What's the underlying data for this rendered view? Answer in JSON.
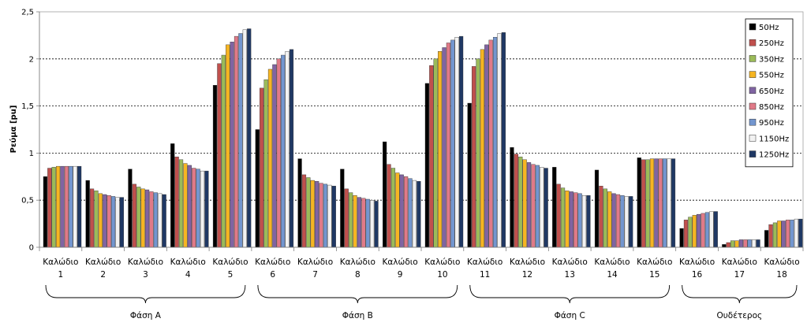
{
  "chart_data": {
    "type": "bar",
    "ylabel": "Ρεύμα [pu]",
    "xlabel": "",
    "ylim": [
      0,
      2.5
    ],
    "yticks": [
      "0",
      "0,5",
      "1",
      "1,5",
      "2",
      "2,5"
    ],
    "grid": true,
    "legend_position": "top-right",
    "categories": [
      {
        "line1": "Καλώδιο",
        "line2": "1"
      },
      {
        "line1": "Καλώδιο",
        "line2": "2"
      },
      {
        "line1": "Καλώδιο",
        "line2": "3"
      },
      {
        "line1": "Καλώδιο",
        "line2": "4"
      },
      {
        "line1": "Καλώδιο",
        "line2": "5"
      },
      {
        "line1": "Καλώδιο",
        "line2": "6"
      },
      {
        "line1": "Καλώδιο",
        "line2": "7"
      },
      {
        "line1": "Καλώδιο",
        "line2": "8"
      },
      {
        "line1": "Καλώδιο",
        "line2": "9"
      },
      {
        "line1": "Καλώδιο",
        "line2": "10"
      },
      {
        "line1": "Καλώδιο",
        "line2": "11"
      },
      {
        "line1": "Καλώδιο",
        "line2": "12"
      },
      {
        "line1": "Καλώδιο",
        "line2": "13"
      },
      {
        "line1": "Καλώδιο",
        "line2": "14"
      },
      {
        "line1": "Καλώδιο",
        "line2": "15"
      },
      {
        "line1": "Καλώδιο",
        "line2": "16"
      },
      {
        "line1": "Καλώδιο",
        "line2": "17"
      },
      {
        "line1": "Καλώδιο",
        "line2": "18"
      }
    ],
    "groups": [
      {
        "label": "Φάση A",
        "from": 0,
        "to": 4
      },
      {
        "label": "Φάση B",
        "from": 5,
        "to": 9
      },
      {
        "label": "Φάση C",
        "from": 10,
        "to": 14
      },
      {
        "label": "Ουδέτερος",
        "from": 15,
        "to": 17
      }
    ],
    "series": [
      {
        "name": "50Hz",
        "color": "#000000",
        "values": [
          0.75,
          0.71,
          0.83,
          1.1,
          1.72,
          1.25,
          0.94,
          0.83,
          1.12,
          1.74,
          1.53,
          1.06,
          0.85,
          0.82,
          0.95,
          0.2,
          0.03,
          0.18
        ]
      },
      {
        "name": "250Hz",
        "color": "#c0504d",
        "values": [
          0.84,
          0.62,
          0.67,
          0.96,
          1.95,
          1.69,
          0.77,
          0.62,
          0.88,
          1.93,
          1.92,
          0.99,
          0.67,
          0.65,
          0.93,
          0.29,
          0.05,
          0.24
        ]
      },
      {
        "name": "350Hz",
        "color": "#9bbb59",
        "values": [
          0.85,
          0.6,
          0.64,
          0.93,
          2.04,
          1.78,
          0.74,
          0.58,
          0.84,
          2.0,
          2.0,
          0.96,
          0.63,
          0.62,
          0.93,
          0.32,
          0.07,
          0.26
        ]
      },
      {
        "name": "550Hz",
        "color": "#f6b522",
        "values": [
          0.86,
          0.57,
          0.62,
          0.89,
          2.15,
          1.89,
          0.71,
          0.55,
          0.79,
          2.08,
          2.1,
          0.93,
          0.6,
          0.59,
          0.94,
          0.34,
          0.07,
          0.28
        ]
      },
      {
        "name": "650Hz",
        "color": "#8064a2",
        "values": [
          0.86,
          0.56,
          0.61,
          0.87,
          2.18,
          1.94,
          0.7,
          0.53,
          0.77,
          2.12,
          2.15,
          0.9,
          0.59,
          0.57,
          0.94,
          0.35,
          0.08,
          0.28
        ]
      },
      {
        "name": "850Hz",
        "color": "#e07a88",
        "values": [
          0.86,
          0.55,
          0.59,
          0.84,
          2.24,
          2.0,
          0.68,
          0.52,
          0.75,
          2.17,
          2.2,
          0.88,
          0.58,
          0.56,
          0.94,
          0.36,
          0.08,
          0.29
        ]
      },
      {
        "name": "950Hz",
        "color": "#7396cf",
        "values": [
          0.86,
          0.54,
          0.58,
          0.83,
          2.27,
          2.04,
          0.67,
          0.51,
          0.73,
          2.2,
          2.23,
          0.87,
          0.57,
          0.55,
          0.94,
          0.37,
          0.08,
          0.29
        ]
      },
      {
        "name": "1150Hz",
        "color": "#f2f2f2",
        "values": [
          0.86,
          0.53,
          0.57,
          0.81,
          2.31,
          2.08,
          0.66,
          0.5,
          0.71,
          2.23,
          2.27,
          0.85,
          0.55,
          0.54,
          0.94,
          0.38,
          0.08,
          0.3
        ]
      },
      {
        "name": "1250Hz",
        "color": "#1f3864",
        "values": [
          0.86,
          0.53,
          0.56,
          0.81,
          2.32,
          2.1,
          0.65,
          0.49,
          0.7,
          2.24,
          2.28,
          0.84,
          0.55,
          0.54,
          0.94,
          0.38,
          0.08,
          0.3
        ]
      }
    ]
  }
}
